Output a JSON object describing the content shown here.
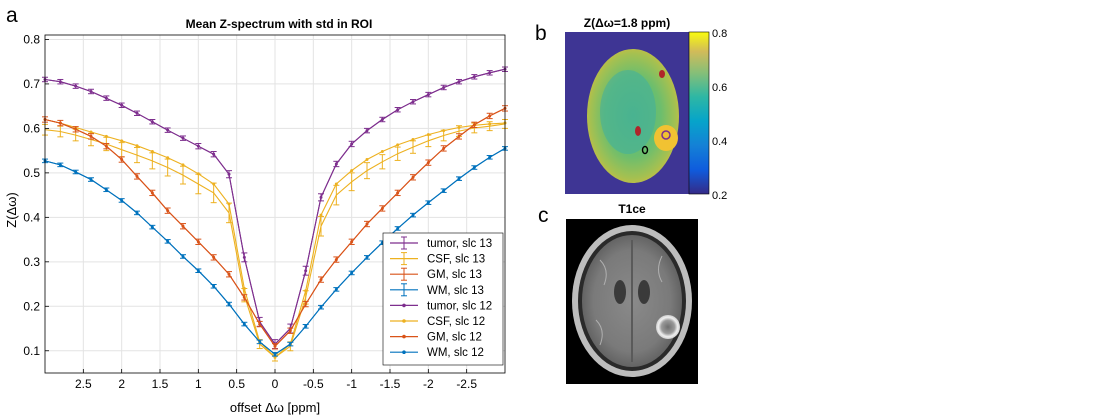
{
  "panels": {
    "a": {
      "letter": "a"
    },
    "b": {
      "letter": "b",
      "title": "Z(Δω=1.8 ppm)",
      "colorbar_ticks": [
        "0.8",
        "0.6",
        "0.4",
        "0.2"
      ],
      "colormap": "parula"
    },
    "c": {
      "letter": "c",
      "title": "T1ce"
    }
  },
  "chart_data": {
    "type": "line",
    "title": "Mean Z-spectrum with std in ROI",
    "xlabel": "offset Δω [ppm]",
    "ylabel": "Z(Δω)",
    "xlim": [
      3.0,
      -3.0
    ],
    "x_reversed": true,
    "ylim": [
      0.05,
      0.81
    ],
    "xticks": [
      "2.5",
      "2",
      "1.5",
      "1",
      "0.5",
      "0",
      "-0.5",
      "-1",
      "-1.5",
      "-2",
      "-2.5"
    ],
    "yticks": [
      "0.1",
      "0.2",
      "0.3",
      "0.4",
      "0.5",
      "0.6",
      "0.7",
      "0.8"
    ],
    "grid": true,
    "legend_position": "bottom-right",
    "x": [
      3.0,
      2.8,
      2.6,
      2.4,
      2.2,
      2.0,
      1.8,
      1.6,
      1.4,
      1.2,
      1.0,
      0.8,
      0.6,
      0.4,
      0.2,
      0.0,
      -0.2,
      -0.4,
      -0.6,
      -0.8,
      -1.0,
      -1.2,
      -1.4,
      -1.6,
      -1.8,
      -2.0,
      -2.2,
      -2.4,
      -2.6,
      -2.8,
      -3.0
    ],
    "series": [
      {
        "name": "tumor, slc 13",
        "color": "#7E2F8E",
        "style": "errorbar",
        "values": [
          0.71,
          0.705,
          0.695,
          0.683,
          0.668,
          0.652,
          0.634,
          0.615,
          0.596,
          0.578,
          0.56,
          0.542,
          0.497,
          0.31,
          0.165,
          0.115,
          0.15,
          0.28,
          0.445,
          0.52,
          0.565,
          0.595,
          0.62,
          0.642,
          0.66,
          0.676,
          0.692,
          0.705,
          0.716,
          0.725,
          0.733
        ],
        "err": [
          0.005,
          0.005,
          0.005,
          0.005,
          0.005,
          0.005,
          0.005,
          0.005,
          0.005,
          0.005,
          0.006,
          0.006,
          0.008,
          0.01,
          0.01,
          0.01,
          0.01,
          0.01,
          0.008,
          0.006,
          0.006,
          0.005,
          0.005,
          0.005,
          0.005,
          0.005,
          0.005,
          0.005,
          0.005,
          0.005,
          0.005
        ]
      },
      {
        "name": "CSF, slc 13",
        "color": "#EDB120",
        "style": "errorbar",
        "values": [
          0.597,
          0.593,
          0.585,
          0.575,
          0.565,
          0.552,
          0.54,
          0.527,
          0.512,
          0.495,
          0.475,
          0.455,
          0.41,
          0.225,
          0.115,
          0.085,
          0.11,
          0.22,
          0.38,
          0.45,
          0.48,
          0.505,
          0.525,
          0.543,
          0.558,
          0.572,
          0.584,
          0.594,
          0.601,
          0.605,
          0.61
        ],
        "err": [
          0.012,
          0.012,
          0.013,
          0.014,
          0.015,
          0.016,
          0.017,
          0.018,
          0.019,
          0.02,
          0.022,
          0.022,
          0.022,
          0.015,
          0.01,
          0.008,
          0.01,
          0.015,
          0.022,
          0.022,
          0.02,
          0.018,
          0.016,
          0.015,
          0.014,
          0.013,
          0.012,
          0.012,
          0.011,
          0.01,
          0.01
        ]
      },
      {
        "name": "GM, slc 13",
        "color": "#D95319",
        "style": "errorbar",
        "values": [
          0.62,
          0.612,
          0.598,
          0.582,
          0.56,
          0.53,
          0.492,
          0.455,
          0.415,
          0.38,
          0.345,
          0.31,
          0.272,
          0.22,
          0.16,
          0.11,
          0.145,
          0.205,
          0.26,
          0.305,
          0.345,
          0.385,
          0.42,
          0.455,
          0.49,
          0.523,
          0.555,
          0.582,
          0.608,
          0.628,
          0.645
        ],
        "err": [
          0.006,
          0.006,
          0.006,
          0.006,
          0.006,
          0.006,
          0.006,
          0.006,
          0.006,
          0.006,
          0.006,
          0.006,
          0.006,
          0.006,
          0.006,
          0.006,
          0.006,
          0.006,
          0.006,
          0.006,
          0.006,
          0.006,
          0.006,
          0.006,
          0.006,
          0.006,
          0.006,
          0.006,
          0.006,
          0.006,
          0.006
        ]
      },
      {
        "name": "WM, slc 13",
        "color": "#0072BD",
        "style": "errorbar",
        "values": [
          0.527,
          0.518,
          0.502,
          0.485,
          0.462,
          0.438,
          0.41,
          0.378,
          0.346,
          0.312,
          0.28,
          0.245,
          0.205,
          0.16,
          0.12,
          0.092,
          0.115,
          0.155,
          0.198,
          0.238,
          0.275,
          0.31,
          0.343,
          0.375,
          0.405,
          0.433,
          0.46,
          0.487,
          0.512,
          0.535,
          0.555
        ],
        "err": [
          0.004,
          0.004,
          0.004,
          0.004,
          0.004,
          0.004,
          0.004,
          0.004,
          0.004,
          0.004,
          0.004,
          0.004,
          0.004,
          0.004,
          0.004,
          0.004,
          0.004,
          0.004,
          0.004,
          0.004,
          0.004,
          0.004,
          0.004,
          0.004,
          0.004,
          0.004,
          0.004,
          0.004,
          0.004,
          0.004,
          0.004
        ]
      },
      {
        "name": "tumor, slc 12",
        "color": "#7E2F8E",
        "style": "dots",
        "values": [
          0.71,
          0.705,
          0.695,
          0.683,
          0.668,
          0.652,
          0.634,
          0.615,
          0.596,
          0.578,
          0.56,
          0.542,
          0.497,
          0.31,
          0.165,
          0.115,
          0.15,
          0.28,
          0.445,
          0.52,
          0.565,
          0.595,
          0.62,
          0.642,
          0.66,
          0.676,
          0.692,
          0.705,
          0.716,
          0.725,
          0.733
        ]
      },
      {
        "name": "CSF, slc 12",
        "color": "#EDB120",
        "style": "dots",
        "values": [
          0.62,
          0.612,
          0.602,
          0.592,
          0.582,
          0.572,
          0.561,
          0.548,
          0.534,
          0.518,
          0.498,
          0.475,
          0.43,
          0.24,
          0.12,
          0.085,
          0.115,
          0.235,
          0.405,
          0.475,
          0.505,
          0.53,
          0.548,
          0.563,
          0.575,
          0.586,
          0.595,
          0.602,
          0.607,
          0.61,
          0.612
        ]
      },
      {
        "name": "GM, slc 12",
        "color": "#D95319",
        "style": "dots",
        "values": [
          0.62,
          0.612,
          0.598,
          0.582,
          0.56,
          0.53,
          0.492,
          0.455,
          0.415,
          0.38,
          0.345,
          0.31,
          0.272,
          0.22,
          0.16,
          0.11,
          0.145,
          0.205,
          0.26,
          0.305,
          0.345,
          0.385,
          0.42,
          0.455,
          0.49,
          0.523,
          0.555,
          0.582,
          0.608,
          0.628,
          0.645
        ]
      },
      {
        "name": "WM, slc 12",
        "color": "#0072BD",
        "style": "dots",
        "values": [
          0.527,
          0.518,
          0.502,
          0.485,
          0.462,
          0.438,
          0.41,
          0.378,
          0.346,
          0.312,
          0.28,
          0.245,
          0.205,
          0.16,
          0.12,
          0.092,
          0.115,
          0.155,
          0.198,
          0.238,
          0.275,
          0.31,
          0.343,
          0.375,
          0.405,
          0.433,
          0.46,
          0.487,
          0.512,
          0.535,
          0.555
        ]
      }
    ]
  }
}
